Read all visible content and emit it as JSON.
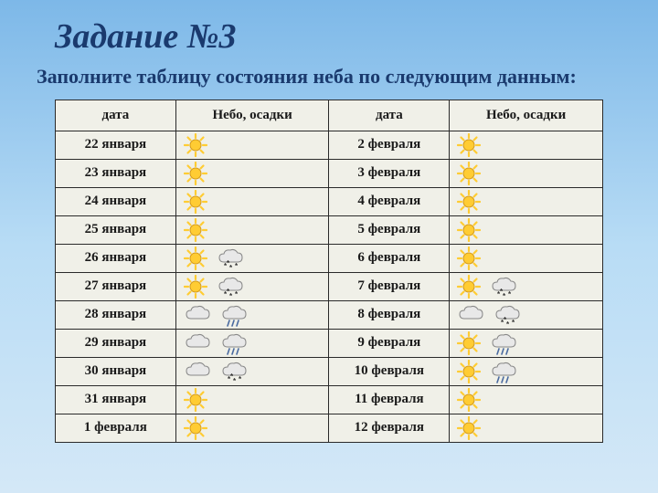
{
  "title": "Задание №3",
  "subtitle": "Заполните таблицу состояния неба по следующим данным:",
  "headers": {
    "date": "дата",
    "sky": "Небо, осадки"
  },
  "colors": {
    "sun_fill": "#ffcc33",
    "sun_stroke": "#d49a1a",
    "cloud_fill": "#e8e8e8",
    "cloud_stroke": "#888888",
    "rain": "#4a6aa0",
    "snow": "#333333"
  },
  "rows": [
    {
      "d1": "22 января",
      "i1": [
        "sun"
      ],
      "d2": "2 февраля",
      "i2": [
        "sun"
      ]
    },
    {
      "d1": "23 января",
      "i1": [
        "sun"
      ],
      "d2": "3 февраля",
      "i2": [
        "sun"
      ]
    },
    {
      "d1": "24 января",
      "i1": [
        "sun"
      ],
      "d2": "4 февраля",
      "i2": [
        "sun"
      ]
    },
    {
      "d1": "25 января",
      "i1": [
        "sun"
      ],
      "d2": "5 февраля",
      "i2": [
        "sun"
      ]
    },
    {
      "d1": "26 января",
      "i1": [
        "sun",
        "cloud-snow"
      ],
      "d2": "6 февраля",
      "i2": [
        "sun"
      ]
    },
    {
      "d1": "27 января",
      "i1": [
        "sun",
        "cloud-snow"
      ],
      "d2": "7 февраля",
      "i2": [
        "sun",
        "cloud-snow"
      ]
    },
    {
      "d1": "28 января",
      "i1": [
        "cloud",
        "cloud-rain"
      ],
      "d2": "8 февраля",
      "i2": [
        "cloud",
        "cloud-snow"
      ]
    },
    {
      "d1": "29 января",
      "i1": [
        "cloud",
        "cloud-rain"
      ],
      "d2": "9 февраля",
      "i2": [
        "sun",
        "cloud-rain"
      ]
    },
    {
      "d1": "30 января",
      "i1": [
        "cloud",
        "cloud-snow"
      ],
      "d2": "10 февраля",
      "i2": [
        "sun",
        "cloud-rain"
      ]
    },
    {
      "d1": "31 января",
      "i1": [
        "sun"
      ],
      "d2": "11 февраля",
      "i2": [
        "sun"
      ]
    },
    {
      "d1": "1 февраля",
      "i1": [
        "sun"
      ],
      "d2": "12 февраля",
      "i2": [
        "sun"
      ]
    }
  ]
}
